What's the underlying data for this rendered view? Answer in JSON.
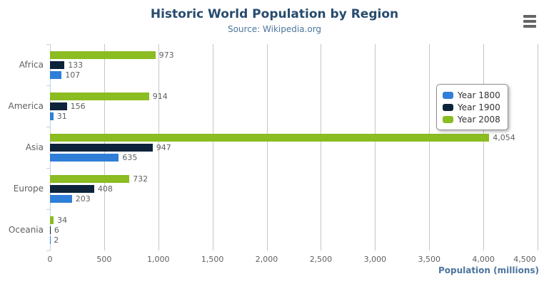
{
  "chart_data": {
    "type": "bar",
    "orientation": "horizontal",
    "title": "Historic World Population by Region",
    "subtitle": "Source: Wikipedia.org",
    "categories": [
      "Africa",
      "America",
      "Asia",
      "Europe",
      "Oceania"
    ],
    "series": [
      {
        "name": "Year 1800",
        "color": "#2f7ed8",
        "values": [
          107,
          31,
          635,
          203,
          2
        ]
      },
      {
        "name": "Year 1900",
        "color": "#0d233a",
        "values": [
          133,
          156,
          947,
          408,
          6
        ]
      },
      {
        "name": "Year 2008",
        "color": "#8bbc21",
        "values": [
          973,
          914,
          4054,
          732,
          34
        ]
      }
    ],
    "bar_order_top_to_bottom": [
      "Year 2008",
      "Year 1900",
      "Year 1800"
    ],
    "data_labels_visible": true,
    "xlabel": "Population (millions)",
    "axis": {
      "min": 0,
      "max": 4500,
      "tick_interval": 500,
      "tick_labels": [
        "0",
        "500",
        "1,000",
        "1,500",
        "2,000",
        "2,500",
        "3,000",
        "3,500",
        "4,000",
        "4,500"
      ]
    },
    "legend": {
      "position": "right",
      "items": [
        "Year 1800",
        "Year 1900",
        "Year 2008"
      ]
    },
    "grid": true
  },
  "colors": {
    "title": "#274b6d",
    "subtitle": "#4d759e",
    "axis_title": "#4d759e",
    "labels": "#606060",
    "gridline": "#c6c6c6",
    "axis_line": "#c0d0e0",
    "legend_border": "#909090",
    "menu_icon": "#666666"
  },
  "menu": {
    "icon": "hamburger-icon"
  }
}
